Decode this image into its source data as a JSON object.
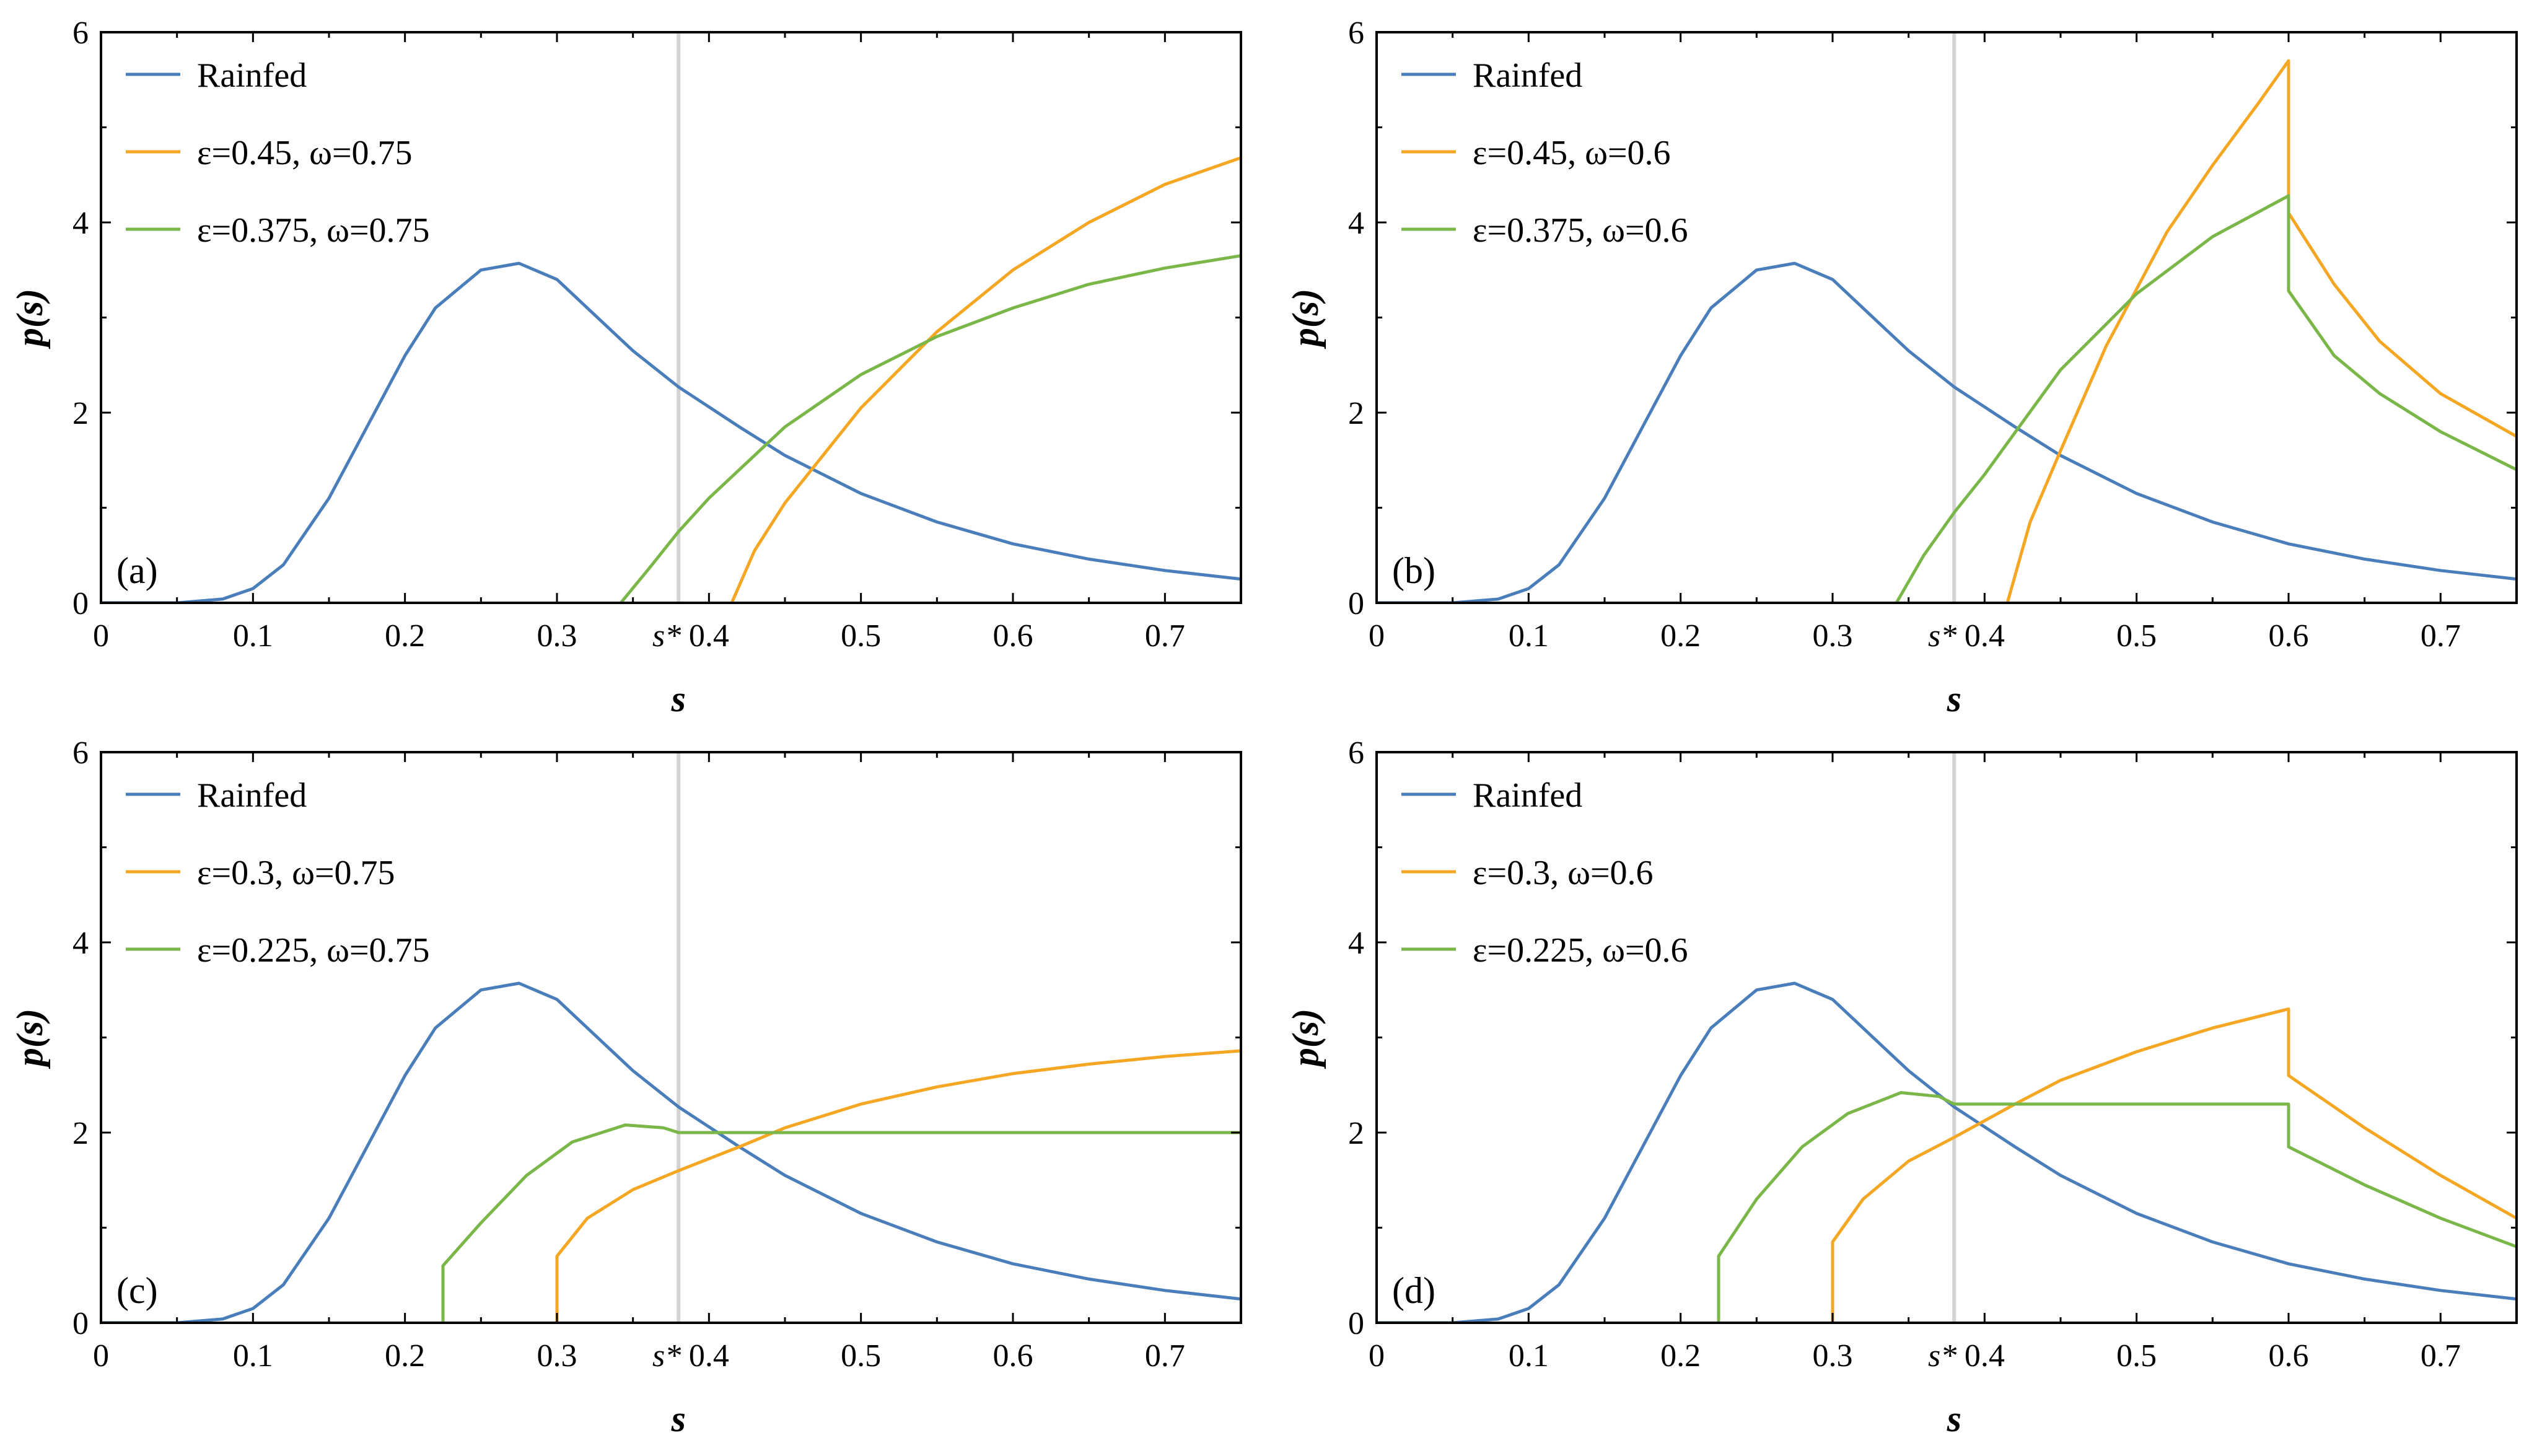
{
  "chart_data": [
    {
      "type": "line",
      "panel_label": "(a)",
      "xlabel": "s",
      "ylabel": "p(s)",
      "xlim": [
        0,
        0.75
      ],
      "ylim": [
        0,
        6
      ],
      "xticks": [
        "0",
        "0.1",
        "0.2",
        "0.3",
        "0.4",
        "0.5",
        "0.6",
        "0.7"
      ],
      "yticks": [
        "0",
        "2",
        "4",
        "6"
      ],
      "s_star": 0.38,
      "s_star_label": "s*",
      "legend_position": "top-left",
      "series": [
        {
          "name": "Rainfed",
          "color": "#4a7ebb",
          "x": [
            0,
            0.05,
            0.08,
            0.1,
            0.12,
            0.15,
            0.18,
            0.2,
            0.22,
            0.25,
            0.275,
            0.3,
            0.33,
            0.35,
            0.38,
            0.42,
            0.45,
            0.5,
            0.55,
            0.6,
            0.65,
            0.7,
            0.75
          ],
          "y": [
            0,
            0.0,
            0.04,
            0.15,
            0.4,
            1.1,
            2.0,
            2.6,
            3.1,
            3.5,
            3.57,
            3.4,
            2.95,
            2.65,
            2.27,
            1.85,
            1.55,
            1.15,
            0.85,
            0.62,
            0.46,
            0.34,
            0.25
          ]
        },
        {
          "name": "ε=0.45, ω=0.75",
          "color": "#f5a623",
          "x": [
            0.415,
            0.43,
            0.45,
            0.5,
            0.55,
            0.6,
            0.65,
            0.7,
            0.75
          ],
          "y": [
            0,
            0.55,
            1.05,
            2.05,
            2.85,
            3.5,
            4.0,
            4.4,
            4.68
          ]
        },
        {
          "name": "ε=0.375, ω=0.75",
          "color": "#7ab648",
          "x": [
            0.342,
            0.36,
            0.38,
            0.4,
            0.45,
            0.5,
            0.55,
            0.6,
            0.65,
            0.7,
            0.75
          ],
          "y": [
            0,
            0.35,
            0.75,
            1.1,
            1.85,
            2.4,
            2.8,
            3.1,
            3.35,
            3.52,
            3.65
          ]
        }
      ]
    },
    {
      "type": "line",
      "panel_label": "(b)",
      "xlabel": "s",
      "ylabel": "p(s)",
      "xlim": [
        0,
        0.75
      ],
      "ylim": [
        0,
        6
      ],
      "xticks": [
        "0",
        "0.1",
        "0.2",
        "0.3",
        "0.4",
        "0.5",
        "0.6",
        "0.7"
      ],
      "yticks": [
        "0",
        "2",
        "4",
        "6"
      ],
      "s_star": 0.38,
      "s_star_label": "s*",
      "legend_position": "top-left",
      "series": [
        {
          "name": "Rainfed",
          "color": "#4a7ebb",
          "x": [
            0,
            0.05,
            0.08,
            0.1,
            0.12,
            0.15,
            0.18,
            0.2,
            0.22,
            0.25,
            0.275,
            0.3,
            0.33,
            0.35,
            0.38,
            0.42,
            0.45,
            0.5,
            0.55,
            0.6,
            0.65,
            0.7,
            0.75
          ],
          "y": [
            0,
            0.0,
            0.04,
            0.15,
            0.4,
            1.1,
            2.0,
            2.6,
            3.1,
            3.5,
            3.57,
            3.4,
            2.95,
            2.65,
            2.27,
            1.85,
            1.55,
            1.15,
            0.85,
            0.62,
            0.46,
            0.34,
            0.25
          ]
        },
        {
          "name": "ε=0.45, ω=0.6",
          "color": "#f5a623",
          "x": [
            0.415,
            0.43,
            0.45,
            0.48,
            0.5,
            0.52,
            0.55,
            0.58,
            0.6,
            0.6,
            0.63,
            0.66,
            0.7,
            0.75
          ],
          "y": [
            0,
            0.85,
            1.6,
            2.7,
            3.3,
            3.9,
            4.6,
            5.25,
            5.7,
            4.1,
            3.35,
            2.75,
            2.2,
            1.75
          ]
        },
        {
          "name": "ε=0.375, ω=0.6",
          "color": "#7ab648",
          "x": [
            0.342,
            0.36,
            0.38,
            0.4,
            0.45,
            0.5,
            0.55,
            0.6,
            0.6,
            0.63,
            0.66,
            0.7,
            0.75
          ],
          "y": [
            0,
            0.5,
            0.95,
            1.35,
            2.45,
            3.25,
            3.85,
            4.28,
            3.28,
            2.6,
            2.2,
            1.8,
            1.4
          ]
        }
      ]
    },
    {
      "type": "line",
      "panel_label": "(c)",
      "xlabel": "s",
      "ylabel": "p(s)",
      "xlim": [
        0,
        0.75
      ],
      "ylim": [
        0,
        6
      ],
      "xticks": [
        "0",
        "0.1",
        "0.2",
        "0.3",
        "0.4",
        "0.5",
        "0.6",
        "0.7"
      ],
      "yticks": [
        "0",
        "2",
        "4",
        "6"
      ],
      "s_star": 0.38,
      "s_star_label": "s*",
      "legend_position": "top-left",
      "series": [
        {
          "name": "Rainfed",
          "color": "#4a7ebb",
          "x": [
            0,
            0.05,
            0.08,
            0.1,
            0.12,
            0.15,
            0.18,
            0.2,
            0.22,
            0.25,
            0.275,
            0.3,
            0.33,
            0.35,
            0.38,
            0.42,
            0.45,
            0.5,
            0.55,
            0.6,
            0.65,
            0.7,
            0.75
          ],
          "y": [
            0,
            0.0,
            0.04,
            0.15,
            0.4,
            1.1,
            2.0,
            2.6,
            3.1,
            3.5,
            3.57,
            3.4,
            2.95,
            2.65,
            2.27,
            1.85,
            1.55,
            1.15,
            0.85,
            0.62,
            0.46,
            0.34,
            0.25
          ]
        },
        {
          "name": "ε=0.3, ω=0.75",
          "color": "#f5a623",
          "x": [
            0.3,
            0.3,
            0.32,
            0.35,
            0.38,
            0.42,
            0.45,
            0.5,
            0.55,
            0.6,
            0.65,
            0.7,
            0.75
          ],
          "y": [
            0,
            0.7,
            1.1,
            1.4,
            1.6,
            1.85,
            2.05,
            2.3,
            2.48,
            2.62,
            2.72,
            2.8,
            2.86
          ]
        },
        {
          "name": "ε=0.225, ω=0.75",
          "color": "#7ab648",
          "x": [
            0.225,
            0.225,
            0.25,
            0.28,
            0.31,
            0.345,
            0.37,
            0.38,
            0.42,
            0.5,
            0.6,
            0.7,
            0.75
          ],
          "y": [
            0,
            0.6,
            1.05,
            1.55,
            1.9,
            2.08,
            2.05,
            2.0,
            2.0,
            2.0,
            2.0,
            2.0,
            2.0
          ]
        }
      ]
    },
    {
      "type": "line",
      "panel_label": "(d)",
      "xlabel": "s",
      "ylabel": "p(s)",
      "xlim": [
        0,
        0.75
      ],
      "ylim": [
        0,
        6
      ],
      "xticks": [
        "0",
        "0.1",
        "0.2",
        "0.3",
        "0.4",
        "0.5",
        "0.6",
        "0.7"
      ],
      "yticks": [
        "0",
        "2",
        "4",
        "6"
      ],
      "s_star": 0.38,
      "s_star_label": "s*",
      "legend_position": "top-left",
      "series": [
        {
          "name": "Rainfed",
          "color": "#4a7ebb",
          "x": [
            0,
            0.05,
            0.08,
            0.1,
            0.12,
            0.15,
            0.18,
            0.2,
            0.22,
            0.25,
            0.275,
            0.3,
            0.33,
            0.35,
            0.38,
            0.42,
            0.45,
            0.5,
            0.55,
            0.6,
            0.65,
            0.7,
            0.75
          ],
          "y": [
            0,
            0.0,
            0.04,
            0.15,
            0.4,
            1.1,
            2.0,
            2.6,
            3.1,
            3.5,
            3.57,
            3.4,
            2.95,
            2.65,
            2.27,
            1.85,
            1.55,
            1.15,
            0.85,
            0.62,
            0.46,
            0.34,
            0.25
          ]
        },
        {
          "name": "ε=0.3, ω=0.6",
          "color": "#f5a623",
          "x": [
            0.3,
            0.3,
            0.32,
            0.35,
            0.38,
            0.42,
            0.45,
            0.5,
            0.55,
            0.6,
            0.6,
            0.65,
            0.7,
            0.75
          ],
          "y": [
            0,
            0.85,
            1.3,
            1.7,
            1.95,
            2.3,
            2.55,
            2.85,
            3.1,
            3.3,
            2.6,
            2.05,
            1.55,
            1.1
          ]
        },
        {
          "name": "ε=0.225, ω=0.6",
          "color": "#7ab648",
          "x": [
            0.225,
            0.225,
            0.25,
            0.28,
            0.31,
            0.345,
            0.37,
            0.38,
            0.42,
            0.5,
            0.6,
            0.6,
            0.65,
            0.7,
            0.75
          ],
          "y": [
            0,
            0.7,
            1.3,
            1.85,
            2.2,
            2.42,
            2.38,
            2.3,
            2.3,
            2.3,
            2.3,
            1.85,
            1.45,
            1.1,
            0.8
          ]
        }
      ]
    }
  ]
}
